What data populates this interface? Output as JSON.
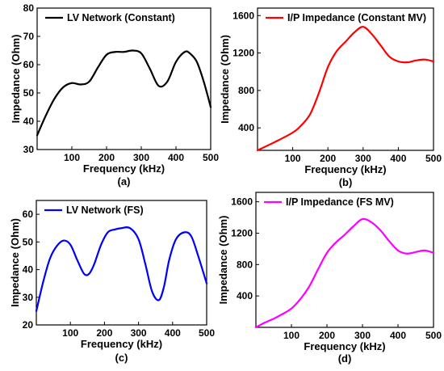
{
  "chart_data": [
    {
      "type": "line",
      "caption": "(a)",
      "xlabel": "Frequency (kHz)",
      "ylabel": "Impedance (Ohm)",
      "xlim": [
        0,
        500
      ],
      "ylim": [
        30,
        80
      ],
      "xticks": [
        100,
        200,
        300,
        400,
        500
      ],
      "yticks": [
        30,
        40,
        50,
        60,
        70,
        80
      ],
      "legend_position": "top-left",
      "series": [
        {
          "name": "LV Network (Constant)",
          "color": "#000000",
          "x": [
            0,
            25,
            50,
            75,
            100,
            125,
            150,
            175,
            200,
            225,
            250,
            275,
            300,
            325,
            350,
            375,
            400,
            425,
            440,
            460,
            480,
            500
          ],
          "y": [
            35,
            42,
            48,
            52,
            53.5,
            53,
            54,
            59,
            63.5,
            64.5,
            64.5,
            65,
            64,
            58.5,
            52.5,
            54,
            61,
            64.5,
            64,
            61,
            54,
            45
          ]
        }
      ]
    },
    {
      "type": "line",
      "caption": "(b)",
      "xlabel": "Frequency (kHz)",
      "ylabel": "Impedance (Ohm)",
      "xlim": [
        0,
        500
      ],
      "ylim": [
        160,
        1680
      ],
      "xticks": [
        100,
        200,
        300,
        400,
        500
      ],
      "yticks": [
        400,
        800,
        1200,
        1600
      ],
      "legend_position": "top-left",
      "series": [
        {
          "name": "I/P Impedance  (Constant MV)",
          "color": "#ff0000",
          "x": [
            0,
            50,
            100,
            125,
            150,
            175,
            200,
            225,
            250,
            275,
            300,
            325,
            350,
            375,
            400,
            425,
            450,
            475,
            500
          ],
          "y": [
            160,
            250,
            350,
            430,
            550,
            780,
            1050,
            1220,
            1320,
            1420,
            1480,
            1400,
            1280,
            1160,
            1110,
            1100,
            1120,
            1130,
            1110
          ]
        }
      ]
    },
    {
      "type": "line",
      "caption": "(c)",
      "xlabel": "Frequency (kHz)",
      "ylabel": "Impedance (Ohm)",
      "xlim": [
        0,
        500
      ],
      "ylim": [
        20,
        65
      ],
      "xticks": [
        100,
        200,
        300,
        400,
        500
      ],
      "yticks": [
        20,
        30,
        40,
        50,
        60
      ],
      "legend_position": "top-left",
      "series": [
        {
          "name": "LV Network (FS)",
          "color": "#0000ff",
          "x": [
            0,
            20,
            40,
            60,
            80,
            100,
            120,
            140,
            155,
            170,
            190,
            210,
            230,
            250,
            275,
            300,
            320,
            340,
            360,
            375,
            390,
            410,
            435,
            455,
            475,
            500
          ],
          "y": [
            25,
            35.5,
            44,
            48.5,
            50.5,
            49,
            43.5,
            38.5,
            38.5,
            42,
            49,
            53.5,
            54.5,
            55,
            55,
            51,
            42,
            32,
            29,
            34,
            43.5,
            51,
            53.5,
            52,
            45,
            35
          ]
        }
      ]
    },
    {
      "type": "line",
      "caption": "(d)",
      "xlabel": "Frequency (kHz)",
      "ylabel": "Impedance (Ohm)",
      "xlim": [
        0,
        500
      ],
      "ylim": [
        0,
        1720
      ],
      "xticks": [
        100,
        200,
        300,
        400,
        500
      ],
      "yticks": [
        400,
        800,
        1200,
        1600
      ],
      "legend_position": "top-left",
      "series": [
        {
          "name": "I/P Impedance  (FS MV)",
          "color": "#ff00ff",
          "x": [
            0,
            25,
            50,
            75,
            100,
            125,
            150,
            175,
            200,
            225,
            250,
            275,
            300,
            325,
            350,
            375,
            400,
            425,
            450,
            475,
            500
          ],
          "y": [
            0,
            60,
            110,
            170,
            240,
            360,
            520,
            740,
            950,
            1080,
            1180,
            1290,
            1380,
            1340,
            1240,
            1100,
            980,
            940,
            960,
            980,
            950
          ]
        }
      ]
    }
  ]
}
